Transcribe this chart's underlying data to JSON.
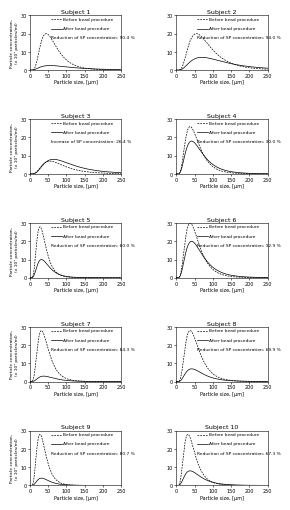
{
  "subjects": [
    {
      "title": "Subject 1",
      "legend_line3": "Reduction of SP concentration: 90.4 %",
      "before_peak": 20,
      "before_peak_x": 45,
      "before_sigma": 0.5,
      "after_peak": 2.5,
      "after_peak_x": 55,
      "after_sigma": 0.7,
      "ylim": 30,
      "yticks": [
        0,
        10,
        20,
        30
      ]
    },
    {
      "title": "Subject 2",
      "legend_line3": "Reduction of SP concentration: 94.0 %",
      "before_peak": 20,
      "before_peak_x": 55,
      "before_sigma": 0.55,
      "after_peak": 7,
      "after_peak_x": 70,
      "after_sigma": 0.65,
      "ylim": 30,
      "yticks": [
        0,
        10,
        20,
        30
      ]
    },
    {
      "title": "Subject 3",
      "legend_line3": "Increase of SP concentration: 26.4 %",
      "before_peak": 7,
      "before_peak_x": 55,
      "before_sigma": 0.55,
      "after_peak": 8,
      "after_peak_x": 65,
      "after_sigma": 0.6,
      "ylim": 30,
      "yticks": [
        0,
        10,
        20,
        30
      ]
    },
    {
      "title": "Subject 4",
      "legend_line3": "Reduction of SP concentration: 30.0 %",
      "before_peak": 26,
      "before_peak_x": 38,
      "before_sigma": 0.5,
      "after_peak": 18,
      "after_peak_x": 42,
      "after_sigma": 0.55,
      "ylim": 30,
      "yticks": [
        0,
        10,
        20,
        30
      ]
    },
    {
      "title": "Subject 5",
      "legend_line3": "Reduction of SP concentration: 60.0 %",
      "before_peak": 28,
      "before_peak_x": 28,
      "before_sigma": 0.45,
      "after_peak": 10,
      "after_peak_x": 32,
      "after_sigma": 0.5,
      "ylim": 30,
      "yticks": [
        0,
        10,
        20,
        30
      ]
    },
    {
      "title": "Subject 6",
      "legend_line3": "Reduction of SP concentration: 32.9 %",
      "before_peak": 30,
      "before_peak_x": 38,
      "before_sigma": 0.5,
      "after_peak": 20,
      "after_peak_x": 42,
      "after_sigma": 0.55,
      "ylim": 30,
      "yticks": [
        0,
        10,
        20,
        30
      ]
    },
    {
      "title": "Subject 7",
      "legend_line3": "Reduction of SP concentration: 84.3 %",
      "before_peak": 28,
      "before_peak_x": 32,
      "before_sigma": 0.48,
      "after_peak": 3,
      "after_peak_x": 38,
      "after_sigma": 0.55,
      "ylim": 30,
      "yticks": [
        0,
        10,
        20,
        30
      ]
    },
    {
      "title": "Subject 8",
      "legend_line3": "Reduction of SP concentration: 69.9 %",
      "before_peak": 28,
      "before_peak_x": 38,
      "before_sigma": 0.5,
      "after_peak": 7,
      "after_peak_x": 42,
      "after_sigma": 0.55,
      "ylim": 30,
      "yticks": [
        0,
        10,
        20,
        30
      ]
    },
    {
      "title": "Subject 9",
      "legend_line3": "Reduction of SP concentration: 80.7 %",
      "before_peak": 28,
      "before_peak_x": 28,
      "before_sigma": 0.45,
      "after_peak": 4,
      "after_peak_x": 32,
      "after_sigma": 0.5,
      "ylim": 30,
      "yticks": [
        0,
        10,
        20,
        30
      ]
    },
    {
      "title": "Subject 10",
      "legend_line3": "Reduction of SP concentration: 67.3 %",
      "before_peak": 28,
      "before_peak_x": 32,
      "before_sigma": 0.48,
      "after_peak": 8,
      "after_peak_x": 38,
      "after_sigma": 0.55,
      "ylim": 30,
      "yticks": [
        0,
        10,
        20,
        30
      ]
    }
  ],
  "xlabel": "Particle size, [μm]",
  "ylabel_line1": "Particle concentration,",
  "ylabel_line2": "(x 10⁴ particles/ml)",
  "xlim": [
    0,
    250
  ],
  "xticks": [
    0,
    50,
    100,
    150,
    200,
    250
  ],
  "legend_line1": "Before bead procedure",
  "legend_line2": "After bead procedure",
  "title_fontsize": 4.5,
  "tick_fontsize": 3.5,
  "label_fontsize": 3.5,
  "legend_fontsize": 3.2,
  "ylabel_fontsize": 3.2
}
